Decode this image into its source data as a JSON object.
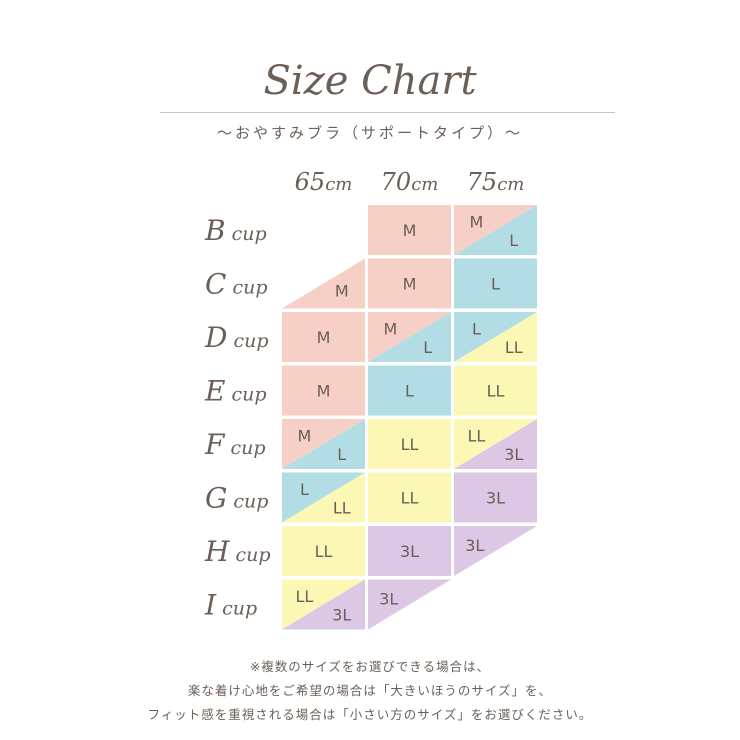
{
  "title": "Size Chart",
  "subtitle": "〜おやすみブラ（サポートタイプ）〜",
  "colors": {
    "M": "#f6cfc7",
    "L": "#b3dde4",
    "LL": "#fbf8b6",
    "3L": "#dcc7e4",
    "text": "#6b5f57"
  },
  "chart_data": {
    "type": "table",
    "columns": [
      "65cm",
      "70cm",
      "75cm"
    ],
    "rows": [
      "B cup",
      "C cup",
      "D cup",
      "E cup",
      "F cup",
      "G cup",
      "H cup",
      "I cup"
    ],
    "cells": [
      [
        null,
        {
          "sizes": [
            "M"
          ]
        },
        {
          "sizes": [
            "M",
            "L"
          ]
        }
      ],
      [
        {
          "sizes": [
            "M"
          ],
          "shape": "half-bottom-right"
        },
        {
          "sizes": [
            "M"
          ]
        },
        {
          "sizes": [
            "L"
          ]
        }
      ],
      [
        {
          "sizes": [
            "M"
          ]
        },
        {
          "sizes": [
            "M",
            "L"
          ]
        },
        {
          "sizes": [
            "L",
            "LL"
          ]
        }
      ],
      [
        {
          "sizes": [
            "M"
          ]
        },
        {
          "sizes": [
            "L"
          ]
        },
        {
          "sizes": [
            "LL"
          ]
        }
      ],
      [
        {
          "sizes": [
            "M",
            "L"
          ]
        },
        {
          "sizes": [
            "LL"
          ]
        },
        {
          "sizes": [
            "LL",
            "3L"
          ]
        }
      ],
      [
        {
          "sizes": [
            "L",
            "LL"
          ]
        },
        {
          "sizes": [
            "LL"
          ]
        },
        {
          "sizes": [
            "3L"
          ]
        }
      ],
      [
        {
          "sizes": [
            "LL"
          ]
        },
        {
          "sizes": [
            "3L"
          ]
        },
        {
          "sizes": [
            "3L"
          ],
          "shape": "half-top-left"
        }
      ],
      [
        {
          "sizes": [
            "LL",
            "3L"
          ]
        },
        {
          "sizes": [
            "3L"
          ],
          "shape": "half-top-left"
        },
        null
      ]
    ]
  },
  "notes": [
    "※複数のサイズをお選びできる場合は、",
    "楽な着け心地をご希望の場合は「大きいほうのサイズ」を、",
    "フィット感を重視される場合は「小さい方のサイズ」をお選びください。"
  ]
}
